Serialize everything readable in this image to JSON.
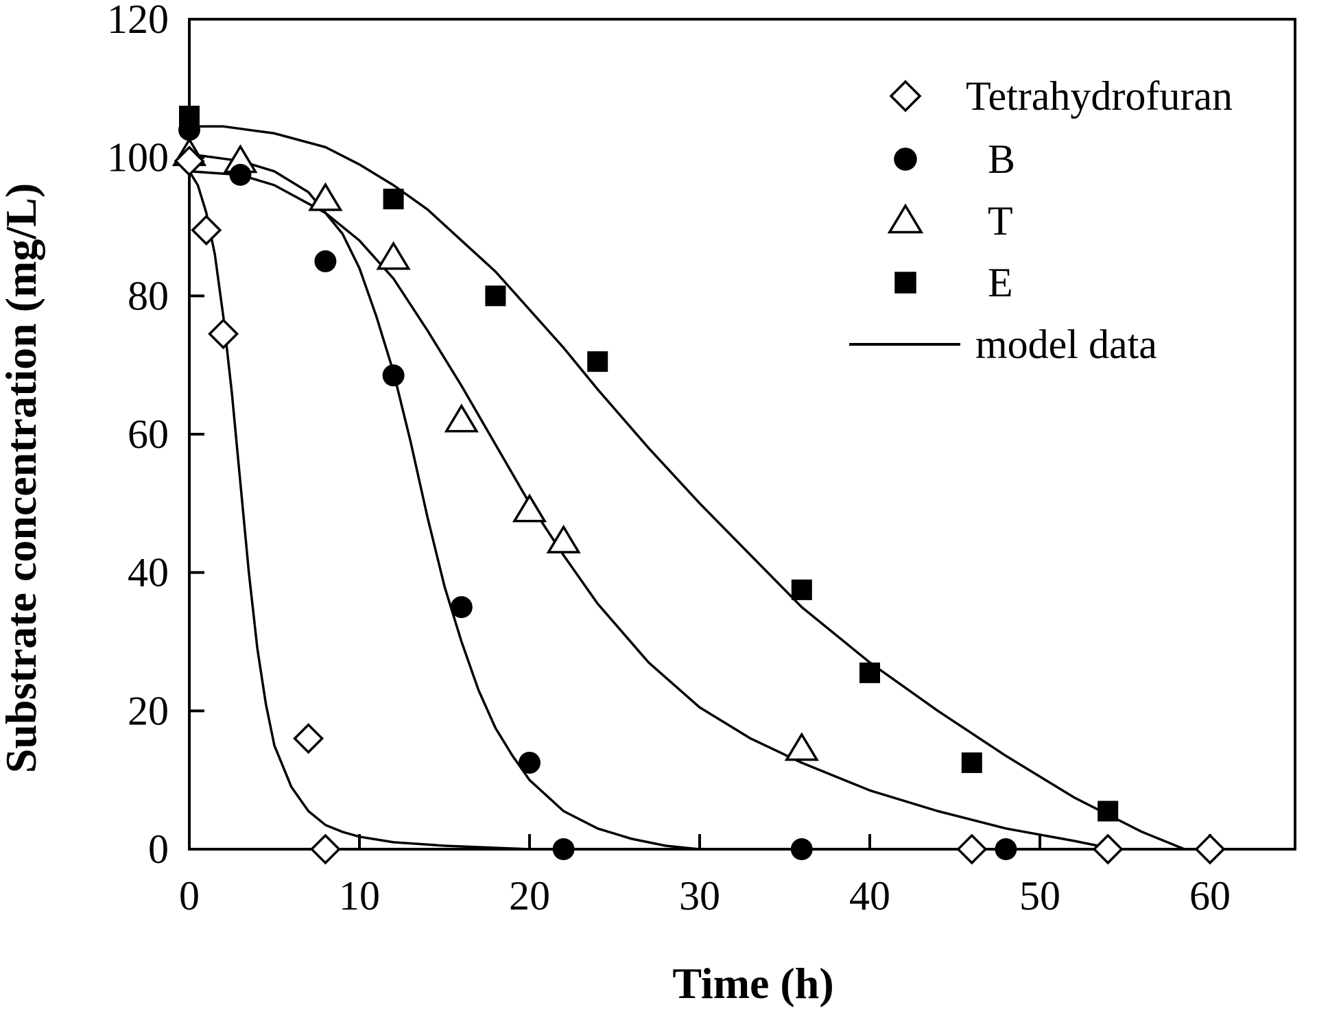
{
  "chart_data": {
    "type": "scatter",
    "title": "",
    "xlabel": "Time (h)",
    "ylabel": "Substrate concentration (mg/L)",
    "xlim": [
      0,
      65
    ],
    "ylim": [
      0,
      120
    ],
    "xticks": [
      0,
      10,
      20,
      30,
      40,
      50,
      60
    ],
    "yticks": [
      0,
      20,
      40,
      60,
      80,
      100,
      120
    ],
    "legend_position": "top-right",
    "series": [
      {
        "name": "Tetrahydrofuran",
        "marker": "open-diamond",
        "x": [
          0,
          1,
          2,
          7,
          8,
          46,
          54,
          60
        ],
        "y": [
          99.5,
          89.5,
          74.5,
          16,
          0,
          0,
          0,
          0
        ]
      },
      {
        "name": "B",
        "marker": "filled-circle",
        "x": [
          0,
          3,
          8,
          12,
          16,
          20,
          22,
          36,
          48
        ],
        "y": [
          104,
          97.5,
          85,
          68.5,
          35,
          12.5,
          0,
          0,
          0
        ]
      },
      {
        "name": "T",
        "marker": "open-triangle",
        "x": [
          0,
          3,
          8,
          12,
          16,
          20,
          22,
          36
        ],
        "y": [
          100.5,
          99.5,
          94,
          85.5,
          62,
          49,
          44.5,
          14.5
        ]
      },
      {
        "name": "E",
        "marker": "filled-square",
        "x": [
          0,
          12,
          18,
          24,
          36,
          40,
          46,
          54
        ],
        "y": [
          106,
          94,
          80,
          70.5,
          37.5,
          25.5,
          12.5,
          5.5
        ]
      },
      {
        "name": "model data",
        "marker": "line",
        "curves": [
          {
            "for": "Tetrahydrofuran",
            "x": [
              0,
              0.5,
              1,
              1.5,
              2,
              2.5,
              3,
              3.5,
              4,
              4.5,
              5,
              6,
              7,
              8,
              9,
              10,
              12,
              15,
              20,
              25
            ],
            "y": [
              98,
              96,
              92,
              86,
              77,
              66,
              53,
              40,
              29,
              21,
              15,
              9,
              5.5,
              3.5,
              2.5,
              1.8,
              1,
              0.5,
              0,
              0
            ]
          },
          {
            "for": "B",
            "x": [
              0,
              3,
              5,
              7,
              9,
              10,
              11,
              12,
              13,
              14,
              15,
              16,
              17,
              18,
              19,
              20,
              22,
              24,
              26,
              28,
              30
            ],
            "y": [
              100.5,
              99.5,
              98,
              95,
              89,
              84,
              77,
              69,
              59,
              48,
              38,
              30,
              23,
              17.5,
              13.5,
              10,
              5.5,
              3,
              1.5,
              0.5,
              0
            ]
          },
          {
            "for": "T",
            "x": [
              0,
              3,
              5,
              8,
              10,
              12,
              14,
              16,
              18,
              20,
              22,
              24,
              27,
              30,
              33,
              36,
              40,
              44,
              48,
              52,
              54
            ],
            "y": [
              98,
              97.5,
              96,
              92,
              88,
              82.5,
              75,
              67,
              58.5,
              50,
              42.5,
              35.5,
              27,
              20.5,
              16,
              12.5,
              8.5,
              5.5,
              3,
              1.2,
              0.2
            ]
          },
          {
            "for": "E",
            "x": [
              0,
              2,
              5,
              8,
              10,
              12,
              14,
              16,
              18,
              20,
              22,
              24,
              27,
              30,
              33,
              36,
              40,
              44,
              48,
              52,
              56,
              58.5
            ],
            "y": [
              104.5,
              104.5,
              103.5,
              101.5,
              99,
              96,
              92.5,
              88,
              83.5,
              78,
              72.5,
              66.5,
              58,
              50,
              42.5,
              35,
              27,
              20,
              13.5,
              7.5,
              2.5,
              0
            ]
          }
        ]
      }
    ]
  }
}
